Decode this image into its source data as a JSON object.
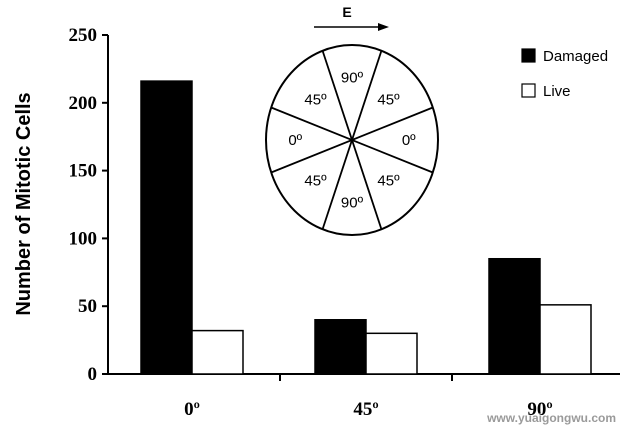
{
  "chart_data": {
    "type": "bar",
    "ylabel": "Number of Mitotic Cells",
    "xlabel": "",
    "categories": [
      "0º",
      "45º",
      "90º"
    ],
    "series": [
      {
        "name": "Damaged",
        "values": [
          216,
          40,
          85
        ],
        "color": "#000000"
      },
      {
        "name": "Live",
        "values": [
          32,
          30,
          51
        ],
        "color": "#ffffff"
      }
    ],
    "ylim": [
      0,
      250
    ],
    "yticks": [
      "0",
      "50",
      "100",
      "150",
      "200",
      "250"
    ],
    "legend_position": "top-right",
    "grid": false,
    "inset": {
      "field_label": "E",
      "sector_labels": [
        "90º",
        "45º",
        "0º",
        "45º",
        "90º",
        "45º",
        "0º",
        "45º"
      ]
    }
  },
  "watermark": "www.yuaigongwu.com"
}
